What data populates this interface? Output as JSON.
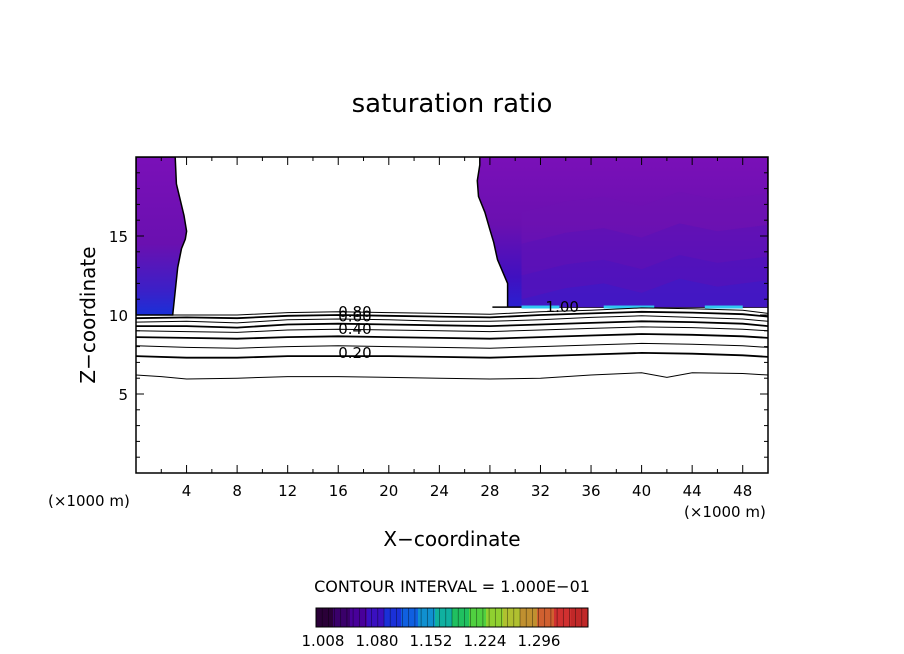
{
  "chart_data": {
    "type": "contour",
    "title": "saturation ratio",
    "xlabel": "X−coordinate",
    "ylabel": "Z−coordinate",
    "x_unit": "(×1000 m)",
    "y_unit": "(×1000 m)",
    "xlim": [
      0,
      50
    ],
    "ylim": [
      0,
      20
    ],
    "x_ticks": [
      4,
      8,
      12,
      16,
      20,
      24,
      28,
      32,
      36,
      40,
      44,
      48
    ],
    "y_ticks": [
      5,
      10,
      15
    ],
    "contour_interval_label": "CONTOUR INTERVAL = 1.000E−01",
    "contour_labels": [
      {
        "text": "0.80",
        "x": 16.0,
        "y": 10.2
      },
      {
        "text": "0.60",
        "x": 16.0,
        "y": 9.9
      },
      {
        "text": "0.40",
        "x": 16.0,
        "y": 9.1
      },
      {
        "text": "0.20",
        "x": 16.0,
        "y": 7.6
      },
      {
        "text": "1.00",
        "x": 32.4,
        "y": 10.5
      }
    ],
    "subsaturated_contours": [
      {
        "level": 0.9,
        "x": [
          0,
          4,
          8,
          12,
          16,
          20,
          24,
          28,
          32,
          36,
          40,
          44,
          48,
          50
        ],
        "y": [
          10.0,
          10.0,
          10.0,
          10.15,
          10.2,
          10.15,
          10.1,
          10.05,
          10.2,
          10.3,
          10.45,
          10.4,
          10.3,
          10.1
        ]
      },
      {
        "level": 0.8,
        "x": [
          0,
          4,
          8,
          12,
          16,
          20,
          24,
          28,
          32,
          36,
          40,
          44,
          48,
          50
        ],
        "y": [
          9.8,
          9.85,
          9.8,
          9.95,
          10.0,
          9.95,
          9.9,
          9.85,
          10.0,
          10.1,
          10.2,
          10.15,
          10.05,
          9.9
        ]
      },
      {
        "level": 0.7,
        "x": [
          0,
          4,
          8,
          12,
          16,
          20,
          24,
          28,
          32,
          36,
          40,
          44,
          48,
          50
        ],
        "y": [
          9.55,
          9.6,
          9.5,
          9.7,
          9.75,
          9.7,
          9.6,
          9.6,
          9.7,
          9.85,
          9.95,
          9.85,
          9.75,
          9.6
        ]
      },
      {
        "level": 0.6,
        "x": [
          0,
          4,
          8,
          12,
          16,
          20,
          24,
          28,
          32,
          36,
          40,
          44,
          48,
          50
        ],
        "y": [
          9.3,
          9.3,
          9.2,
          9.4,
          9.45,
          9.4,
          9.35,
          9.3,
          9.4,
          9.5,
          9.6,
          9.55,
          9.45,
          9.3
        ]
      },
      {
        "level": 0.5,
        "x": [
          0,
          4,
          8,
          12,
          16,
          20,
          24,
          28,
          32,
          36,
          40,
          44,
          48,
          50
        ],
        "y": [
          9.0,
          8.95,
          8.9,
          9.05,
          9.1,
          9.05,
          9.0,
          8.95,
          9.05,
          9.15,
          9.25,
          9.2,
          9.1,
          9.0
        ]
      },
      {
        "level": 0.4,
        "x": [
          0,
          4,
          8,
          12,
          16,
          20,
          24,
          28,
          32,
          36,
          40,
          44,
          48,
          50
        ],
        "y": [
          8.6,
          8.55,
          8.5,
          8.6,
          8.65,
          8.6,
          8.55,
          8.5,
          8.6,
          8.7,
          8.8,
          8.75,
          8.65,
          8.55
        ]
      },
      {
        "level": 0.3,
        "x": [
          0,
          4,
          8,
          12,
          16,
          20,
          24,
          28,
          32,
          36,
          40,
          44,
          48,
          50
        ],
        "y": [
          8.05,
          7.95,
          7.9,
          8.0,
          8.05,
          8.0,
          7.95,
          7.9,
          8.0,
          8.1,
          8.2,
          8.15,
          8.05,
          7.95
        ]
      },
      {
        "level": 0.2,
        "x": [
          0,
          4,
          8,
          12,
          16,
          20,
          24,
          28,
          32,
          36,
          40,
          44,
          48,
          50
        ],
        "y": [
          7.4,
          7.3,
          7.3,
          7.4,
          7.4,
          7.4,
          7.35,
          7.3,
          7.4,
          7.5,
          7.6,
          7.55,
          7.45,
          7.35
        ]
      },
      {
        "level": 0.1,
        "x": [
          0,
          2,
          4,
          8,
          10,
          12,
          16,
          20,
          24,
          28,
          32,
          36,
          40,
          42,
          44,
          48,
          50
        ],
        "y": [
          6.2,
          6.1,
          5.95,
          6.0,
          6.05,
          6.1,
          6.1,
          6.05,
          6.0,
          5.95,
          6.0,
          6.2,
          6.35,
          6.05,
          6.35,
          6.3,
          6.2
        ]
      }
    ],
    "saturated_regions": [
      {
        "name": "left",
        "x": [
          0.0,
          2.9,
          3.1,
          3.3,
          3.6,
          3.9,
          4.0,
          3.8,
          3.5,
          3.2,
          3.1,
          0.0
        ],
        "y": [
          10.0,
          10.0,
          11.5,
          13.0,
          14.2,
          14.8,
          15.3,
          16.3,
          17.3,
          18.3,
          20.0,
          20.0
        ]
      },
      {
        "name": "right",
        "x": [
          28.2,
          29.4,
          29.4,
          28.6,
          28.3,
          28.0,
          27.6,
          27.1,
          27.0,
          27.2,
          27.2,
          50.0,
          50.0
        ],
        "y": [
          10.5,
          10.5,
          12.0,
          13.5,
          14.6,
          15.4,
          16.5,
          17.5,
          18.5,
          19.5,
          20.0,
          20.0,
          10.5
        ]
      }
    ],
    "colorbar": {
      "tick_labels": [
        "1.008",
        "1.080",
        "1.152",
        "1.224",
        "1.296"
      ],
      "colors": [
        "#2a0038",
        "#3a006a",
        "#48009a",
        "#3a10c0",
        "#1a30d8",
        "#1060e0",
        "#1090d0",
        "#10b0a0",
        "#20c060",
        "#50d040",
        "#90d030",
        "#b0c030",
        "#c09030",
        "#d06030",
        "#d03030",
        "#c02828"
      ]
    }
  }
}
